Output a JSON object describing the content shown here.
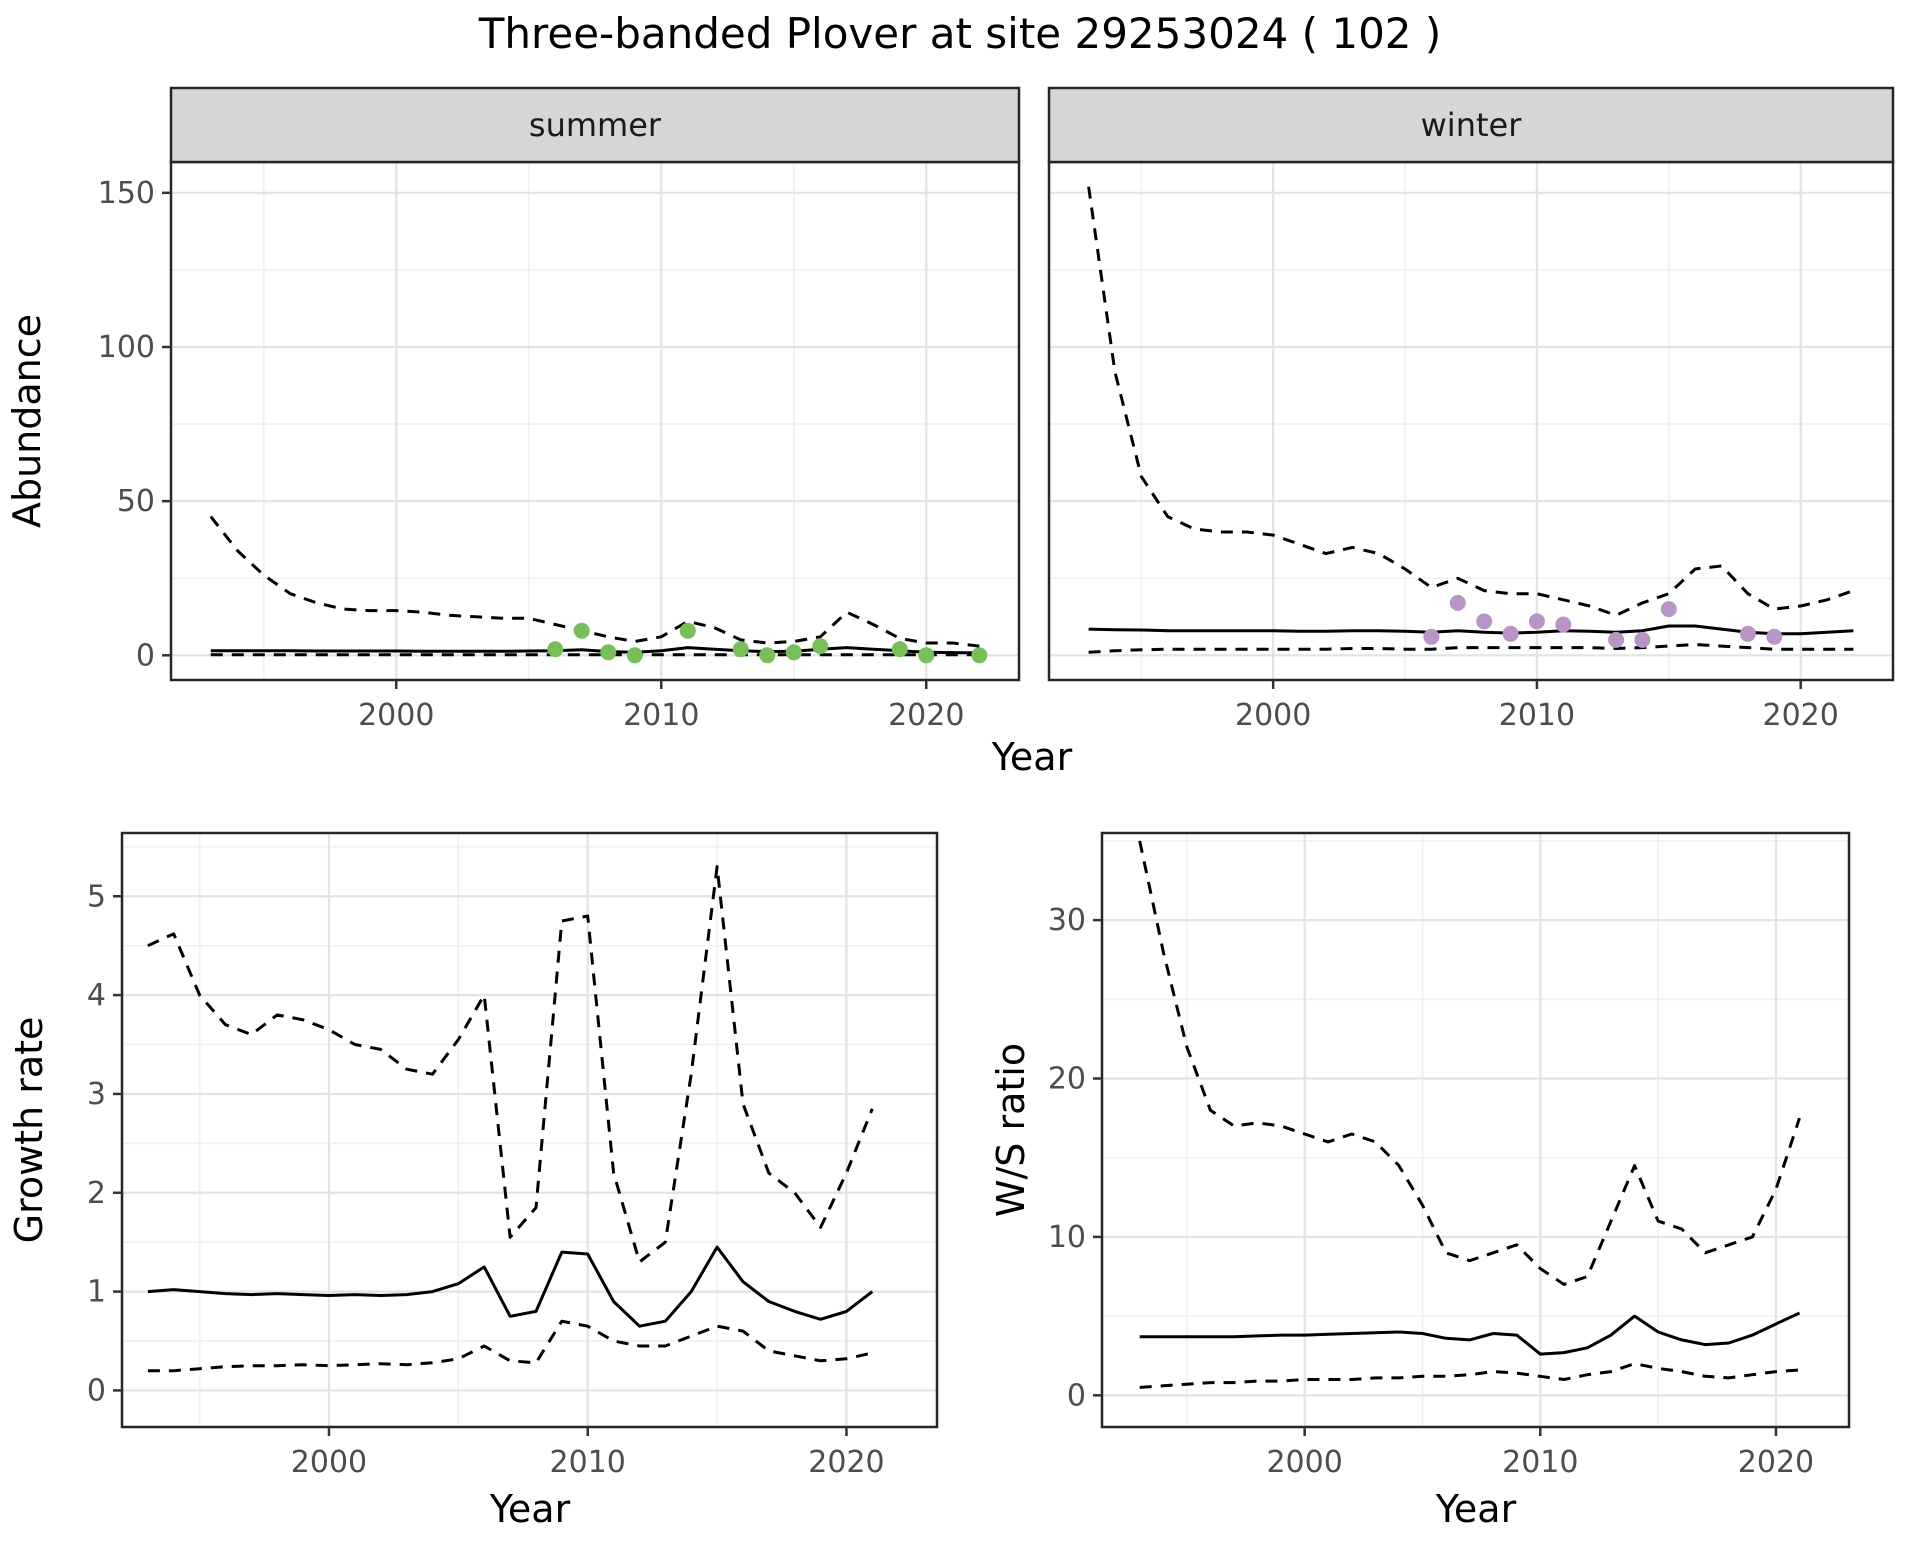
{
  "title": "Three-banded Plover at site 29253024 ( 102 )",
  "chart_data": [
    {
      "id": "abundance-summer",
      "type": "line",
      "title": "summer",
      "xlabel": "Year",
      "ylabel": "Abundance",
      "xlim": [
        1991.5,
        2023.5
      ],
      "ylim": [
        -8,
        160
      ],
      "xticks": [
        2000,
        2010,
        2020
      ],
      "yticks": [
        0,
        50,
        100,
        150
      ],
      "grid": "on",
      "x": [
        1993,
        1994,
        1995,
        1996,
        1997,
        1998,
        1999,
        2000,
        2001,
        2002,
        2003,
        2004,
        2005,
        2006,
        2007,
        2008,
        2009,
        2010,
        2011,
        2012,
        2013,
        2014,
        2015,
        2016,
        2017,
        2018,
        2019,
        2020,
        2021,
        2022
      ],
      "series": [
        {
          "name": "fit",
          "style": "solid",
          "values": [
            1.5,
            1.5,
            1.5,
            1.5,
            1.4,
            1.4,
            1.4,
            1.4,
            1.3,
            1.3,
            1.3,
            1.3,
            1.4,
            1.5,
            1.8,
            1.2,
            1.0,
            1.5,
            2.5,
            2.0,
            1.5,
            1.2,
            1.3,
            2.0,
            2.5,
            2.0,
            1.5,
            1.0,
            0.9,
            0.8
          ]
        },
        {
          "name": "upper-ci",
          "style": "dashed",
          "values": [
            45,
            34,
            26,
            20,
            17,
            15,
            14.5,
            14.5,
            14,
            13,
            12.5,
            12,
            12,
            10,
            8,
            6,
            4.5,
            6,
            11,
            9,
            5,
            4,
            4.5,
            6,
            14,
            10,
            5.5,
            4,
            4,
            3
          ]
        },
        {
          "name": "lower-ci",
          "style": "dashed",
          "values": [
            0.2,
            0.2,
            0.2,
            0.2,
            0.2,
            0.2,
            0.2,
            0.2,
            0.2,
            0.2,
            0.2,
            0.2,
            0.2,
            0.2,
            0.2,
            0.2,
            0.2,
            0.2,
            0.2,
            0.2,
            0.2,
            0.2,
            0.2,
            0.2,
            0.2,
            0.2,
            0.2,
            0.2,
            0.2,
            0.2
          ]
        }
      ],
      "points": {
        "name": "observed-summer-counts",
        "color": "#78be59",
        "x": [
          2006,
          2007,
          2008,
          2009,
          2011,
          2013,
          2014,
          2015,
          2016,
          2019,
          2020,
          2022
        ],
        "y": [
          2,
          8,
          1,
          0,
          8,
          2,
          0,
          1,
          3,
          2,
          0,
          0
        ]
      }
    },
    {
      "id": "abundance-winter",
      "type": "line",
      "title": "winter",
      "xlabel": "Year",
      "ylabel": "Abundance",
      "xlim": [
        1991.5,
        2023.5
      ],
      "ylim": [
        -8,
        160
      ],
      "xticks": [
        2000,
        2010,
        2020
      ],
      "yticks": [
        0,
        50,
        100,
        150
      ],
      "grid": "on",
      "x": [
        1993,
        1994,
        1995,
        1996,
        1997,
        1998,
        1999,
        2000,
        2001,
        2002,
        2003,
        2004,
        2005,
        2006,
        2007,
        2008,
        2009,
        2010,
        2011,
        2012,
        2013,
        2014,
        2015,
        2016,
        2017,
        2018,
        2019,
        2020,
        2021,
        2022
      ],
      "series": [
        {
          "name": "fit",
          "style": "solid",
          "values": [
            8.5,
            8.3,
            8.2,
            8,
            8,
            8,
            8,
            8,
            7.8,
            7.8,
            8,
            8,
            7.8,
            7.5,
            8,
            7.5,
            7.2,
            7.5,
            8,
            7.8,
            7.5,
            8,
            9.5,
            9.5,
            8.5,
            7.5,
            7,
            7,
            7.5,
            8
          ]
        },
        {
          "name": "upper-ci",
          "style": "dashed",
          "values": [
            152,
            92,
            58,
            45,
            41,
            40,
            40,
            39,
            36,
            33,
            35,
            33,
            28,
            22,
            25,
            21,
            20,
            20,
            18,
            16,
            13,
            17,
            20,
            28,
            29,
            20,
            15,
            16,
            18,
            21
          ]
        },
        {
          "name": "lower-ci",
          "style": "dashed",
          "values": [
            1,
            1.5,
            1.8,
            2,
            2,
            2,
            2,
            2,
            2,
            2,
            2.2,
            2.2,
            2,
            2,
            2.5,
            2.5,
            2.5,
            2.5,
            2.5,
            2.5,
            2.2,
            2.5,
            3,
            3.5,
            3,
            2.5,
            2,
            2,
            2,
            2
          ]
        }
      ],
      "points": {
        "name": "observed-winter-counts",
        "color": "#b894c7",
        "x": [
          2006,
          2007,
          2008,
          2009,
          2010,
          2011,
          2013,
          2014,
          2015,
          2018,
          2019
        ],
        "y": [
          6,
          17,
          11,
          7,
          11,
          10,
          5,
          5,
          15,
          7,
          6
        ]
      }
    },
    {
      "id": "growth-rate",
      "type": "line",
      "title": "",
      "xlabel": "Year",
      "ylabel": "Growth rate",
      "xlim": [
        1992,
        2023.5
      ],
      "ylim": [
        -0.37,
        5.64
      ],
      "xticks": [
        2000,
        2010,
        2020
      ],
      "yticks": [
        0,
        1,
        2,
        3,
        4,
        5
      ],
      "grid": "on",
      "x": [
        1993,
        1994,
        1995,
        1996,
        1997,
        1998,
        1999,
        2000,
        2001,
        2002,
        2003,
        2004,
        2005,
        2006,
        2007,
        2008,
        2009,
        2010,
        2011,
        2012,
        2013,
        2014,
        2015,
        2016,
        2017,
        2018,
        2019,
        2020,
        2021
      ],
      "series": [
        {
          "name": "fit",
          "style": "solid",
          "values": [
            1.0,
            1.02,
            1.0,
            0.98,
            0.97,
            0.98,
            0.97,
            0.96,
            0.97,
            0.96,
            0.97,
            1.0,
            1.08,
            1.25,
            0.75,
            0.8,
            1.4,
            1.38,
            0.9,
            0.65,
            0.7,
            1.0,
            1.45,
            1.1,
            0.9,
            0.8,
            0.72,
            0.8,
            1.0
          ]
        },
        {
          "name": "upper-ci",
          "style": "dashed",
          "values": [
            4.5,
            4.62,
            4.0,
            3.7,
            3.6,
            3.8,
            3.75,
            3.65,
            3.5,
            3.45,
            3.25,
            3.2,
            3.55,
            4.0,
            1.55,
            1.85,
            4.75,
            4.8,
            2.2,
            1.3,
            1.5,
            3.2,
            5.3,
            2.9,
            2.2,
            2.0,
            1.65,
            2.2,
            2.85
          ]
        },
        {
          "name": "lower-ci",
          "style": "dashed",
          "values": [
            0.2,
            0.2,
            0.22,
            0.24,
            0.25,
            0.25,
            0.26,
            0.25,
            0.26,
            0.27,
            0.26,
            0.28,
            0.32,
            0.45,
            0.3,
            0.28,
            0.7,
            0.65,
            0.5,
            0.45,
            0.45,
            0.55,
            0.65,
            0.6,
            0.4,
            0.35,
            0.3,
            0.32,
            0.38
          ]
        }
      ],
      "points": null
    },
    {
      "id": "ws-ratio",
      "type": "line",
      "title": "",
      "xlabel": "Year",
      "ylabel": "W/S ratio",
      "xlim": [
        1991.4,
        2023.1
      ],
      "ylim": [
        -2,
        35.5
      ],
      "xticks": [
        2000,
        2010,
        2020
      ],
      "yticks": [
        0,
        10,
        20,
        30
      ],
      "grid": "on",
      "x": [
        1993,
        1994,
        1995,
        1996,
        1997,
        1998,
        1999,
        2000,
        2001,
        2002,
        2003,
        2004,
        2005,
        2006,
        2007,
        2008,
        2009,
        2010,
        2011,
        2012,
        2013,
        2014,
        2015,
        2016,
        2017,
        2018,
        2019,
        2020,
        2021
      ],
      "series": [
        {
          "name": "fit",
          "style": "solid",
          "values": [
            3.7,
            3.7,
            3.7,
            3.7,
            3.7,
            3.75,
            3.8,
            3.8,
            3.85,
            3.9,
            3.95,
            4.0,
            3.9,
            3.6,
            3.5,
            3.9,
            3.8,
            2.6,
            2.7,
            3.0,
            3.8,
            5.0,
            4.0,
            3.5,
            3.2,
            3.3,
            3.8,
            4.5,
            5.2
          ]
        },
        {
          "name": "upper-ci",
          "style": "dashed",
          "values": [
            35,
            28,
            22,
            18,
            17,
            17.2,
            17,
            16.5,
            16,
            16.5,
            16,
            14.5,
            12,
            9,
            8.5,
            9,
            9.5,
            8,
            7,
            7.5,
            11,
            14.5,
            11,
            10.5,
            9,
            9.5,
            10,
            13,
            17.5
          ]
        },
        {
          "name": "lower-ci",
          "style": "dashed",
          "values": [
            0.5,
            0.6,
            0.7,
            0.8,
            0.8,
            0.9,
            0.9,
            1.0,
            1.0,
            1.0,
            1.1,
            1.1,
            1.2,
            1.2,
            1.3,
            1.5,
            1.4,
            1.2,
            1.0,
            1.3,
            1.5,
            2.0,
            1.7,
            1.5,
            1.2,
            1.1,
            1.3,
            1.5,
            1.6
          ]
        }
      ],
      "points": null
    }
  ]
}
